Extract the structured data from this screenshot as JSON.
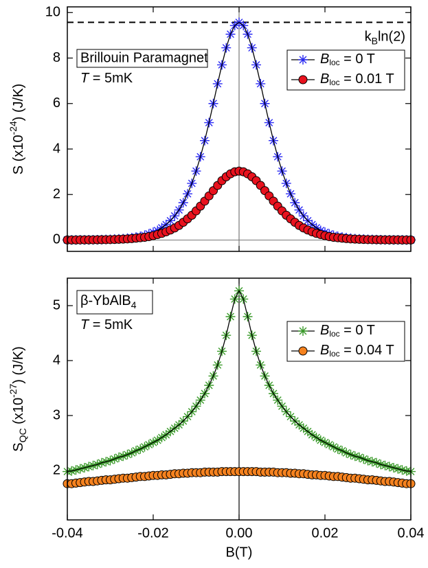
{
  "chart_data": [
    {
      "type": "scatter",
      "y_label": [
        "S (x10",
        "-24",
        ") (J/K)"
      ],
      "xlim": [
        -0.04,
        0.04
      ],
      "ylim": [
        -0.5,
        10.25
      ],
      "yticks": [
        0,
        2,
        4,
        6,
        8,
        10
      ],
      "hline": 9.57,
      "hline_label": [
        "k",
        "B",
        "ln(2)"
      ],
      "box_label": "Brillouin Paramagnet",
      "temp_label": [
        "T",
        " = 5mK"
      ],
      "x": [
        -0.04,
        -0.039,
        -0.038,
        -0.037,
        -0.036,
        -0.035,
        -0.034,
        -0.033,
        -0.032,
        -0.031,
        -0.03,
        -0.029,
        -0.028,
        -0.027,
        -0.026,
        -0.025,
        -0.024,
        -0.023,
        -0.022,
        -0.021,
        -0.02,
        -0.019,
        -0.018,
        -0.017,
        -0.016,
        -0.015,
        -0.014,
        -0.013,
        -0.012,
        -0.011,
        -0.01,
        -0.009,
        -0.008,
        -0.007,
        -0.006,
        -0.005,
        -0.004,
        -0.003,
        -0.002,
        -0.001,
        0,
        0.001,
        0.002,
        0.003,
        0.004,
        0.005,
        0.006,
        0.007,
        0.008,
        0.009,
        0.01,
        0.011,
        0.012,
        0.013,
        0.014,
        0.015,
        0.016,
        0.017,
        0.018,
        0.019,
        0.02,
        0.021,
        0.022,
        0.023,
        0.024,
        0.025,
        0.026,
        0.027,
        0.028,
        0.029,
        0.03,
        0.031,
        0.032,
        0.033,
        0.034,
        0.035,
        0.036,
        0.037,
        0.038,
        0.039,
        0.04
      ],
      "series": [
        {
          "name": [
            "B",
            "loc",
            " = 0 T"
          ],
          "color": "#2a2af2",
          "marker": "star",
          "values": [
            0.002,
            0.003,
            0.004,
            0.005,
            0.006,
            0.008,
            0.011,
            0.014,
            0.018,
            0.023,
            0.03,
            0.04,
            0.05,
            0.06,
            0.08,
            0.1,
            0.13,
            0.16,
            0.21,
            0.27,
            0.34,
            0.42,
            0.54,
            0.68,
            0.85,
            1.06,
            1.32,
            1.64,
            2.03,
            2.49,
            3.03,
            3.66,
            4.37,
            5.16,
            6.0,
            6.87,
            7.7,
            8.45,
            9.05,
            9.43,
            9.57,
            9.43,
            9.05,
            8.45,
            7.7,
            6.87,
            6.0,
            5.16,
            4.37,
            3.66,
            3.03,
            2.49,
            2.03,
            1.64,
            1.32,
            1.06,
            0.85,
            0.68,
            0.54,
            0.42,
            0.34,
            0.27,
            0.21,
            0.16,
            0.13,
            0.1,
            0.08,
            0.06,
            0.05,
            0.04,
            0.03,
            0.023,
            0.018,
            0.014,
            0.011,
            0.008,
            0.006,
            0.005,
            0.004,
            0.003,
            0.002
          ]
        },
        {
          "name": [
            "B",
            "loc",
            " = 0.01 T"
          ],
          "color": "#e8121e",
          "marker": "circle",
          "values": [
            0.002,
            0.002,
            0.003,
            0.004,
            0.005,
            0.006,
            0.007,
            0.009,
            0.012,
            0.015,
            0.019,
            0.025,
            0.031,
            0.039,
            0.049,
            0.063,
            0.08,
            0.1,
            0.12,
            0.15,
            0.19,
            0.24,
            0.29,
            0.36,
            0.44,
            0.53,
            0.64,
            0.78,
            0.93,
            1.09,
            1.28,
            1.49,
            1.71,
            1.94,
            2.17,
            2.4,
            2.61,
            2.78,
            2.91,
            3.0,
            3.03,
            3.0,
            2.91,
            2.78,
            2.61,
            2.4,
            2.17,
            1.94,
            1.71,
            1.49,
            1.28,
            1.09,
            0.93,
            0.78,
            0.64,
            0.53,
            0.44,
            0.36,
            0.29,
            0.24,
            0.19,
            0.15,
            0.12,
            0.1,
            0.08,
            0.063,
            0.049,
            0.039,
            0.031,
            0.025,
            0.019,
            0.015,
            0.012,
            0.009,
            0.007,
            0.006,
            0.005,
            0.004,
            0.003,
            0.002,
            0.002
          ]
        }
      ]
    },
    {
      "type": "scatter",
      "y_label": [
        "S",
        "QC",
        " (x10",
        "-27",
        ") (J/K)"
      ],
      "x_label": "B(T)",
      "xlim": [
        -0.04,
        0.04
      ],
      "xticks": [
        -0.04,
        -0.02,
        {
          "value": 0,
          "label": "0.00"
        },
        0.02,
        0.04
      ],
      "ylim": [
        1.1,
        5.5
      ],
      "yticks": [
        2,
        3,
        4,
        5
      ],
      "box_label": [
        "β-YbAlB",
        "4"
      ],
      "temp_label": [
        "T",
        " = 5mK"
      ],
      "x": [
        -0.04,
        -0.039,
        -0.038,
        -0.037,
        -0.036,
        -0.035,
        -0.034,
        -0.033,
        -0.032,
        -0.031,
        -0.03,
        -0.029,
        -0.028,
        -0.027,
        -0.026,
        -0.025,
        -0.024,
        -0.023,
        -0.022,
        -0.021,
        -0.02,
        -0.019,
        -0.018,
        -0.017,
        -0.016,
        -0.015,
        -0.014,
        -0.013,
        -0.012,
        -0.011,
        -0.01,
        -0.009,
        -0.008,
        -0.007,
        -0.006,
        -0.005,
        -0.004,
        -0.003,
        -0.002,
        -0.001,
        0,
        0.001,
        0.002,
        0.003,
        0.004,
        0.005,
        0.006,
        0.007,
        0.008,
        0.009,
        0.01,
        0.011,
        0.012,
        0.013,
        0.014,
        0.015,
        0.016,
        0.017,
        0.018,
        0.019,
        0.02,
        0.021,
        0.022,
        0.023,
        0.024,
        0.025,
        0.026,
        0.027,
        0.028,
        0.029,
        0.03,
        0.031,
        0.032,
        0.033,
        0.034,
        0.035,
        0.036,
        0.037,
        0.038,
        0.039,
        0.04
      ],
      "series": [
        {
          "name": [
            "B",
            "loc",
            " = 0 T"
          ],
          "color": "#3a9a2a",
          "marker": "star",
          "values": [
            1.98,
            1.99,
            2.01,
            2.03,
            2.05,
            2.07,
            2.09,
            2.11,
            2.14,
            2.16,
            2.18,
            2.21,
            2.24,
            2.26,
            2.29,
            2.32,
            2.36,
            2.39,
            2.43,
            2.47,
            2.51,
            2.55,
            2.6,
            2.65,
            2.71,
            2.77,
            2.83,
            2.9,
            2.98,
            3.07,
            3.17,
            3.28,
            3.4,
            3.55,
            3.72,
            3.92,
            4.17,
            4.46,
            4.8,
            5.12,
            5.27,
            5.12,
            4.8,
            4.46,
            4.17,
            3.92,
            3.72,
            3.55,
            3.4,
            3.28,
            3.17,
            3.07,
            2.98,
            2.9,
            2.83,
            2.77,
            2.71,
            2.65,
            2.6,
            2.55,
            2.51,
            2.47,
            2.43,
            2.39,
            2.36,
            2.32,
            2.29,
            2.26,
            2.24,
            2.21,
            2.18,
            2.16,
            2.14,
            2.11,
            2.09,
            2.07,
            2.05,
            2.03,
            2.01,
            1.99,
            1.98
          ]
        },
        {
          "name": [
            "B",
            "loc",
            " = 0.04 T"
          ],
          "color": "#f5821f",
          "marker": "circle",
          "values": [
            1.76,
            1.76,
            1.77,
            1.78,
            1.79,
            1.8,
            1.8,
            1.81,
            1.82,
            1.83,
            1.83,
            1.84,
            1.85,
            1.86,
            1.86,
            1.87,
            1.88,
            1.89,
            1.89,
            1.9,
            1.91,
            1.91,
            1.92,
            1.92,
            1.93,
            1.94,
            1.94,
            1.95,
            1.95,
            1.96,
            1.96,
            1.96,
            1.97,
            1.97,
            1.97,
            1.97,
            1.98,
            1.98,
            1.98,
            1.98,
            1.98,
            1.98,
            1.98,
            1.98,
            1.98,
            1.97,
            1.97,
            1.97,
            1.97,
            1.96,
            1.96,
            1.96,
            1.95,
            1.95,
            1.94,
            1.94,
            1.93,
            1.92,
            1.92,
            1.91,
            1.91,
            1.9,
            1.89,
            1.89,
            1.88,
            1.87,
            1.86,
            1.86,
            1.85,
            1.84,
            1.83,
            1.83,
            1.82,
            1.81,
            1.8,
            1.8,
            1.79,
            1.78,
            1.77,
            1.76,
            1.76
          ]
        }
      ]
    }
  ]
}
